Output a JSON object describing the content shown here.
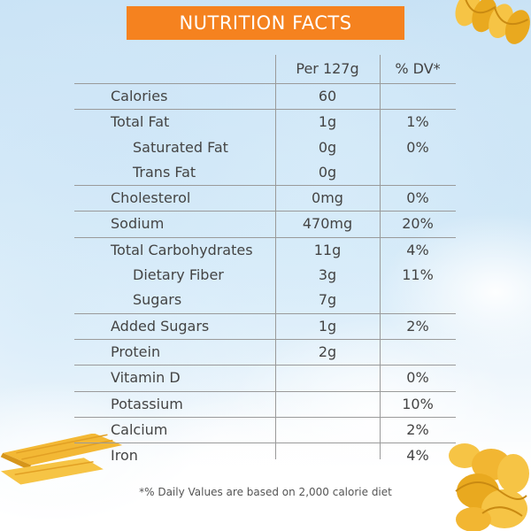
{
  "title": "NUTRITION FACTS",
  "columns": {
    "amount": "Per 127g",
    "dv": "% DV*"
  },
  "rows": [
    {
      "name": "Calories",
      "amount": "60",
      "dv": ""
    },
    {
      "name": "Total Fat",
      "amount": "1g",
      "dv": "1%"
    },
    {
      "name": "Saturated Fat",
      "amount": "0g",
      "dv": "0%"
    },
    {
      "name": "Trans Fat",
      "amount": "0g",
      "dv": ""
    },
    {
      "name": "Cholesterol",
      "amount": "0mg",
      "dv": "0%"
    },
    {
      "name": "Sodium",
      "amount": "470mg",
      "dv": "20%"
    },
    {
      "name": "Total Carbohydrates",
      "amount": "11g",
      "dv": "4%"
    },
    {
      "name": "Dietary Fiber",
      "amount": "3g",
      "dv": "11%"
    },
    {
      "name": "Sugars",
      "amount": "7g",
      "dv": ""
    },
    {
      "name": "Added Sugars",
      "amount": "1g",
      "dv": "2%"
    },
    {
      "name": "Protein",
      "amount": "2g",
      "dv": ""
    },
    {
      "name": "Vitamin D",
      "amount": "",
      "dv": "0%"
    },
    {
      "name": "Potassium",
      "amount": "",
      "dv": "10%"
    },
    {
      "name": "Calcium",
      "amount": "",
      "dv": "2%"
    },
    {
      "name": "Iron",
      "amount": "",
      "dv": "4%"
    }
  ],
  "footnote": "*% Daily Values are based on 2,000 calorie diet",
  "colors": {
    "title_bg": "#f5821f",
    "pasta": "#f2b632",
    "text": "#444444"
  }
}
